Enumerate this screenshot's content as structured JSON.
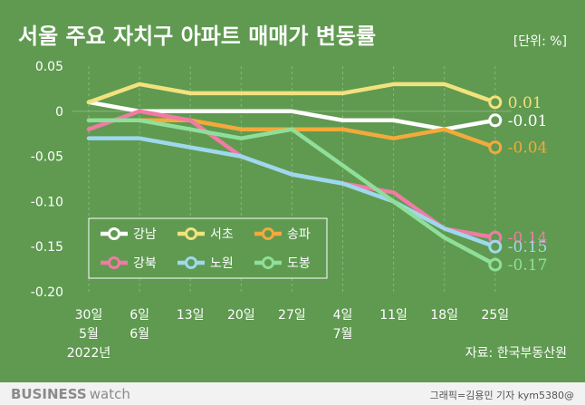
{
  "title": "서울 주요 자치구 아파트 매매가 변동률",
  "unit_label": "[단위: %]",
  "source": "자료: 한국부동산원",
  "brand": {
    "strong": "BUSINESS",
    "light": "watch"
  },
  "credit": "그래픽=김용민 기자 kym5380@",
  "colors": {
    "background": "#5F9A50",
    "footer_bg": "#F2F2F2",
    "text": "#FFFFFF",
    "grid": "#87B57B",
    "brand": "#8A8A8A"
  },
  "chart_data": {
    "type": "line",
    "x": [
      "2022-05-30",
      "2022-06-06",
      "2022-06-13",
      "2022-06-20",
      "2022-06-27",
      "2022-07-04",
      "2022-07-11",
      "2022-07-18",
      "2022-07-25"
    ],
    "x_tick_labels": [
      {
        "day": "30일",
        "month": "5월",
        "year": "2022년"
      },
      {
        "day": "6일",
        "month": "6월",
        "year": ""
      },
      {
        "day": "13일",
        "month": "",
        "year": ""
      },
      {
        "day": "20일",
        "month": "",
        "year": ""
      },
      {
        "day": "27일",
        "month": "",
        "year": ""
      },
      {
        "day": "4일",
        "month": "7월",
        "year": ""
      },
      {
        "day": "11일",
        "month": "",
        "year": ""
      },
      {
        "day": "18일",
        "month": "",
        "year": ""
      },
      {
        "day": "25일",
        "month": "",
        "year": ""
      }
    ],
    "y_ticks": [
      "0.05",
      "0",
      "-0.05",
      "-0.10",
      "-0.15",
      "-0.20"
    ],
    "ylim": [
      -0.2,
      0.05
    ],
    "grid": "vertical dashed lines and horizontal line at 0",
    "legend_position": "lower-left",
    "series": [
      {
        "name": "강남",
        "color": "#FFFFFF",
        "values": [
          0.01,
          0.0,
          0.0,
          0.0,
          0.0,
          -0.01,
          -0.01,
          -0.02,
          -0.01
        ],
        "end_label": "-0.01"
      },
      {
        "name": "서초",
        "color": "#F2E27E",
        "values": [
          0.01,
          0.03,
          0.02,
          0.02,
          0.02,
          0.02,
          0.03,
          0.03,
          0.01
        ],
        "end_label": "0.01"
      },
      {
        "name": "송파",
        "color": "#F4A93C",
        "values": [
          -0.01,
          -0.01,
          -0.01,
          -0.02,
          -0.02,
          -0.02,
          -0.03,
          -0.02,
          -0.04
        ],
        "end_label": "-0.04"
      },
      {
        "name": "강북",
        "color": "#F07BA4",
        "values": [
          -0.02,
          0.0,
          -0.01,
          -0.05,
          -0.07,
          -0.08,
          -0.09,
          -0.13,
          -0.14
        ],
        "end_label": "-0.14"
      },
      {
        "name": "노원",
        "color": "#9ED8EE",
        "values": [
          -0.03,
          -0.03,
          -0.04,
          -0.05,
          -0.07,
          -0.08,
          -0.1,
          -0.13,
          -0.15
        ],
        "end_label": "-0.15"
      },
      {
        "name": "도봉",
        "color": "#8FDF9A",
        "values": [
          -0.01,
          -0.01,
          -0.02,
          -0.03,
          -0.02,
          -0.06,
          -0.1,
          -0.14,
          -0.17
        ],
        "end_label": "-0.17"
      }
    ]
  }
}
